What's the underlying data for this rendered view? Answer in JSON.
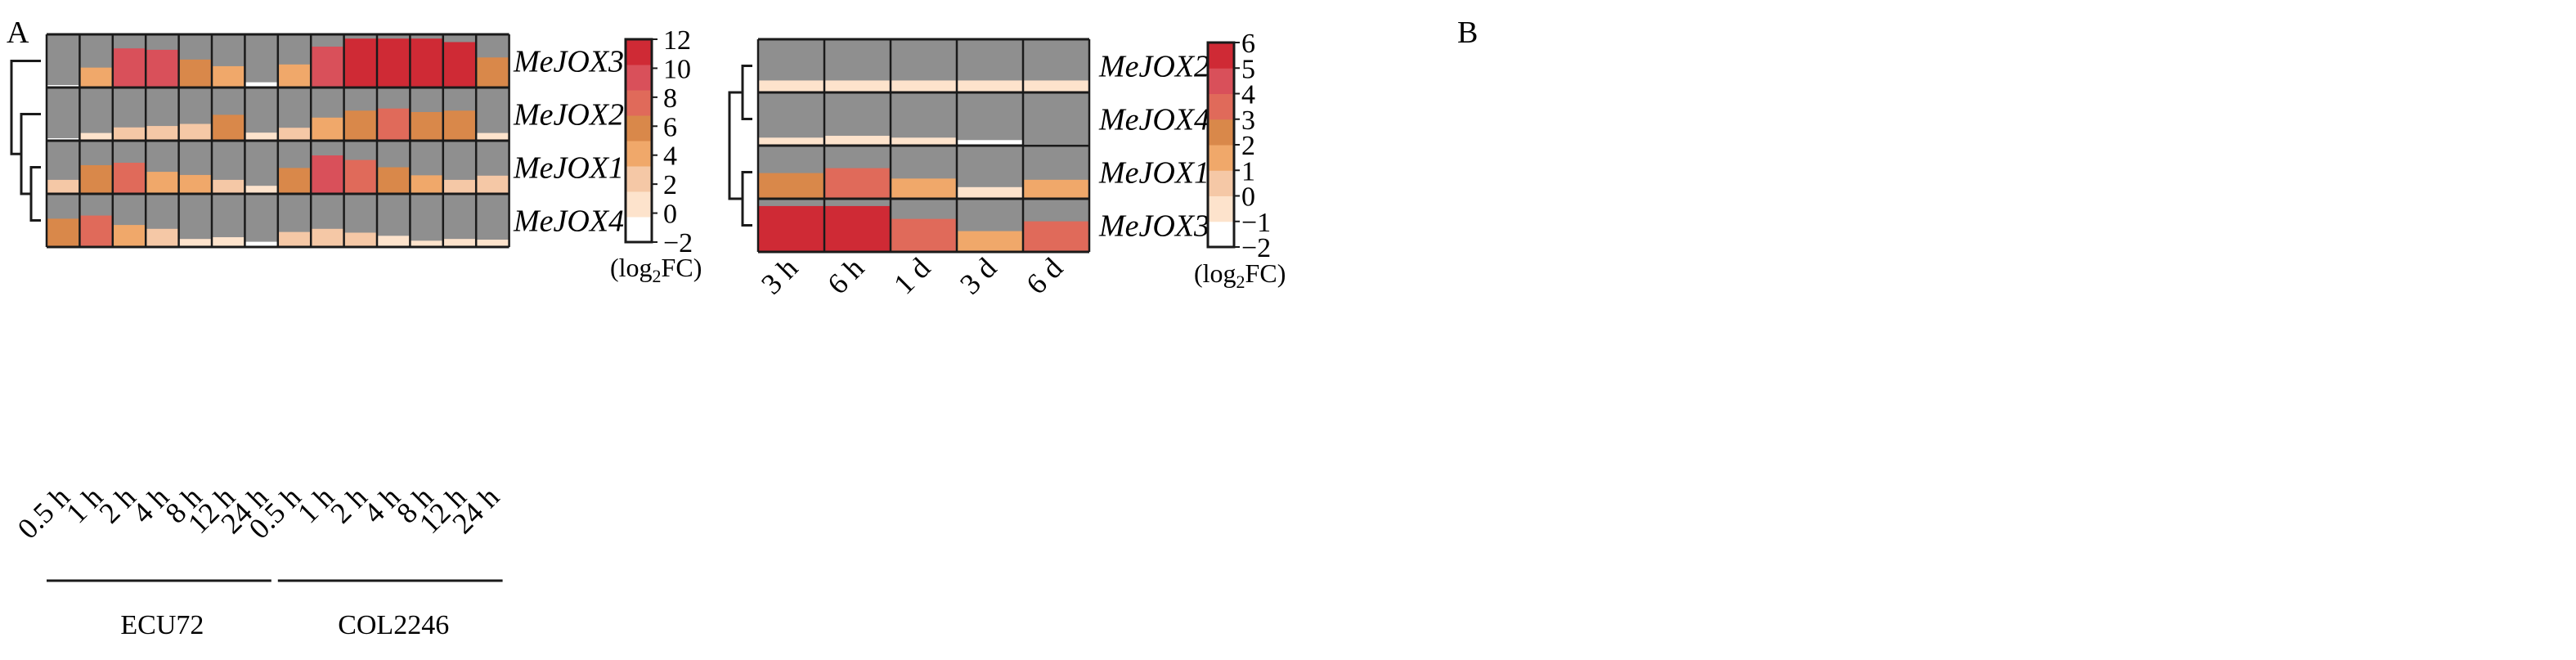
{
  "chart_data": [
    {
      "type": "heatmap",
      "panel_label": "A",
      "rows": [
        "MeJOX3",
        "MeJOX2",
        "MeJOX1",
        "MeJOX4"
      ],
      "columns": [
        "0.5 h",
        "1 h",
        "2 h",
        "4 h",
        "8 h",
        "12 h",
        "24 h",
        "0.5 h",
        "1 h",
        "2 h",
        "4 h",
        "8 h",
        "12 h",
        "24 h"
      ],
      "groups": [
        {
          "name": "ECU72",
          "columns": [
            "0.5 h",
            "1 h",
            "2 h",
            "4 h",
            "8 h",
            "12 h",
            "24 h"
          ]
        },
        {
          "name": "COL2246",
          "columns": [
            "0.5 h",
            "1 h",
            "2 h",
            "4 h",
            "8 h",
            "12 h",
            "24 h"
          ]
        }
      ],
      "values": [
        [
          -1.3,
          3.7,
          9.2,
          8.8,
          6.0,
          4.1,
          -0.5,
          4.6,
          9.7,
          12.0,
          12.0,
          12.0,
          11.0,
          6.6
        ],
        [
          -1.3,
          0.2,
          1.8,
          2.2,
          2.8,
          5.4,
          0.3,
          1.7,
          4.6,
          6.6,
          7.2,
          6.2,
          6.6,
          0.2
        ],
        [
          2.0,
          6.2,
          6.9,
          4.3,
          3.4,
          2.0,
          0.3,
          5.4,
          9.0,
          7.7,
          5.6,
          3.3,
          2.0,
          3.2
        ],
        [
          6.1,
          7.0,
          4.3,
          3.2,
          0.3,
          0.8,
          -0.5,
          2.3,
          3.2,
          2.1,
          1.2,
          -0.2,
          0.3,
          0.1
        ]
      ],
      "dendrogram": [
        {
          "merge": [
            "MeJOX1",
            "MeJOX4"
          ],
          "height": 1
        },
        {
          "merge": [
            "MeJOX2",
            "MeJOX1+MeJOX4"
          ],
          "height": 2
        },
        {
          "merge": [
            "MeJOX3",
            "MeJOX2+MeJOX1+MeJOX4"
          ],
          "height": 3
        }
      ],
      "colorbar": {
        "min": -2,
        "max": 12,
        "ticks": [
          -2,
          0,
          2,
          4,
          6,
          8,
          10,
          12
        ],
        "label": "log",
        "label_sub": "2",
        "label_suffix": "FC"
      }
    },
    {
      "type": "heatmap",
      "panel_label": "B",
      "rows": [
        "MeJOX2",
        "MeJOX4",
        "MeJOX1",
        "MeJOX3"
      ],
      "columns": [
        "3 h",
        "6 h",
        "1 d",
        "3 d",
        "6 d"
      ],
      "values": [
        [
          -0.05,
          -0.05,
          -0.05,
          -0.05,
          -0.05
        ],
        [
          -0.7,
          -0.4,
          -0.7,
          -1.1,
          -2.0
        ],
        [
          2.2,
          3.0,
          1.3,
          -0.1,
          1.1
        ],
        [
          5.5,
          5.5,
          3.4,
          1.4,
          3.0
        ]
      ],
      "dendrogram": [
        {
          "merge": [
            "MeJOX2",
            "MeJOX4"
          ],
          "height": 1
        },
        {
          "merge": [
            "MeJOX1",
            "MeJOX3"
          ],
          "height": 1
        },
        {
          "merge": [
            "MeJOX2+MeJOX4",
            "MeJOX1+MeJOX3"
          ],
          "height": 2
        }
      ],
      "colorbar": {
        "min": -2,
        "max": 6,
        "ticks": [
          -2,
          -1,
          0,
          1,
          2,
          3,
          4,
          5,
          6
        ],
        "label": "log",
        "label_sub": "2",
        "label_suffix": "FC"
      }
    }
  ],
  "colors": {
    "cell_bg": "#8f8f8f",
    "grid": "#1a1a1a",
    "scale": [
      "#ffffff",
      "#fde3cc",
      "#f5c8a6",
      "#f0a86a",
      "#d9884a",
      "#e06a5a",
      "#d9505a",
      "#cf2a35"
    ]
  }
}
